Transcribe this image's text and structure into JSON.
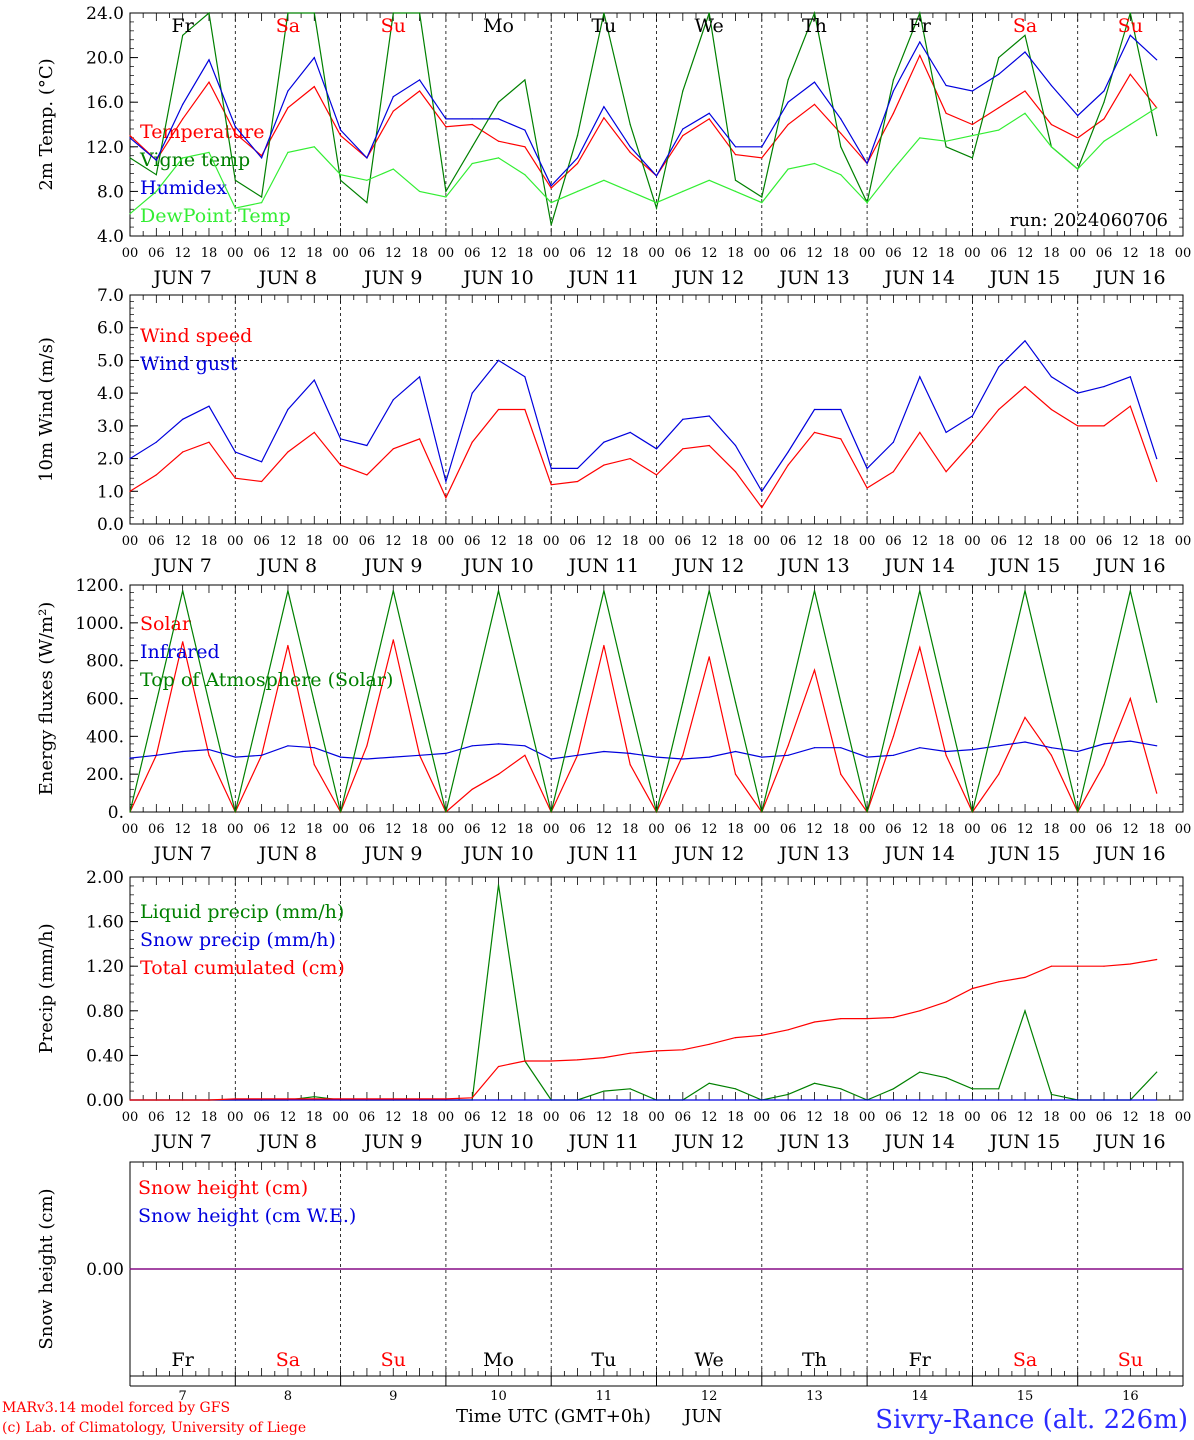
{
  "footer": {
    "model": "MARv3.14 model forced by GFS",
    "copyright": "(c) Lab. of Climatology, University of Liege",
    "xlabel": "Time UTC (GMT+0h)",
    "month": "JUN",
    "station": "Sivry-Rance (alt. 226m)"
  },
  "days": [
    {
      "abbr": "Fr",
      "num": "7",
      "weekend": false
    },
    {
      "abbr": "Sa",
      "num": "8",
      "weekend": true
    },
    {
      "abbr": "Su",
      "num": "9",
      "weekend": true
    },
    {
      "abbr": "Mo",
      "num": "10",
      "weekend": false
    },
    {
      "abbr": "Tu",
      "num": "11",
      "weekend": false
    },
    {
      "abbr": "We",
      "num": "12",
      "weekend": false
    },
    {
      "abbr": "Th",
      "num": "13",
      "weekend": false
    },
    {
      "abbr": "Fr",
      "num": "14",
      "weekend": false
    },
    {
      "abbr": "Sa",
      "num": "15",
      "weekend": true
    },
    {
      "abbr": "Su",
      "num": "16",
      "weekend": true
    }
  ],
  "hour_ticks": [
    "00",
    "06",
    "12",
    "18"
  ],
  "date_labels": [
    "JUN  7",
    "JUN  8",
    "JUN  9",
    "JUN 10",
    "JUN 11",
    "JUN 12",
    "JUN 13",
    "JUN 14",
    "JUN 15",
    "JUN 16"
  ],
  "colors": {
    "red": "#ff0000",
    "green": "#008000",
    "lightgreen": "#33ee33",
    "blue": "#0000dd",
    "purple": "#800080",
    "weekend": "#ff0000",
    "station": "#2b2bff"
  },
  "chart_data": [
    {
      "type": "line",
      "ylabel": "2m Temp. (°C)",
      "ylim": [
        4,
        24
      ],
      "yticks": [
        "4.0",
        "8.0",
        "12.0",
        "16.0",
        "20.0",
        "24.0"
      ],
      "ytick_values": [
        4,
        8,
        12,
        16,
        20,
        24
      ],
      "annotation": "run: 2024060706",
      "x_hours": [
        0,
        6,
        12,
        18,
        24,
        30,
        36,
        42,
        48,
        54,
        60,
        66,
        72,
        78,
        84,
        90,
        96,
        102,
        108,
        114,
        120,
        126,
        132,
        138,
        144,
        150,
        156,
        162,
        168,
        174,
        180,
        186,
        192,
        198,
        204,
        210,
        216,
        222,
        228,
        234
      ],
      "series": [
        {
          "name": "Temperature",
          "color": "red",
          "values": [
            13.0,
            10.8,
            14.5,
            17.8,
            13.2,
            11.2,
            15.5,
            17.4,
            13.0,
            11.0,
            15.2,
            17.0,
            13.8,
            14.0,
            12.5,
            12.0,
            8.3,
            10.5,
            14.6,
            11.5,
            9.4,
            13.0,
            14.5,
            11.3,
            11.0,
            14.0,
            15.8,
            13.2,
            10.5,
            15.0,
            20.2,
            15.0,
            14.0,
            15.5,
            17.0,
            14.0,
            12.8,
            14.5,
            18.5,
            15.5
          ]
        },
        {
          "name": "Vigne temp",
          "color": "green",
          "values": [
            11.0,
            9.5,
            22.0,
            24.0,
            9.0,
            7.5,
            24.0,
            24.0,
            9.0,
            7.0,
            24.0,
            24.0,
            8.0,
            12.0,
            16.0,
            18.0,
            5.0,
            13.0,
            24.0,
            14.0,
            6.5,
            17.0,
            24.0,
            9.0,
            7.5,
            18.0,
            24.0,
            12.0,
            7.0,
            18.0,
            24.0,
            12.0,
            11.0,
            20.0,
            22.0,
            12.0,
            10.0,
            16.0,
            24.0,
            13.0
          ]
        },
        {
          "name": "Humidex",
          "color": "blue",
          "values": [
            12.8,
            10.8,
            15.8,
            19.8,
            13.8,
            11.0,
            17.0,
            20.0,
            13.5,
            11.0,
            16.5,
            18.0,
            14.5,
            14.5,
            14.5,
            13.5,
            8.5,
            11.0,
            15.6,
            12.0,
            9.4,
            13.6,
            15.0,
            12.0,
            12.0,
            16.0,
            17.8,
            14.5,
            10.5,
            17.0,
            21.4,
            17.5,
            17.0,
            18.5,
            20.5,
            17.5,
            14.8,
            17.0,
            22.0,
            19.8
          ]
        },
        {
          "name": "DewPoint Temp",
          "color": "lightgreen",
          "values": [
            6.0,
            8.0,
            11.0,
            11.5,
            6.5,
            7.0,
            11.5,
            12.0,
            9.5,
            9.0,
            10.0,
            8.0,
            7.5,
            10.5,
            11.0,
            9.5,
            7.0,
            8.0,
            9.0,
            8.0,
            7.0,
            8.0,
            9.0,
            8.0,
            7.0,
            10.0,
            10.5,
            9.5,
            7.0,
            10.0,
            12.8,
            12.5,
            13.0,
            13.5,
            15.0,
            12.0,
            10.0,
            12.5,
            14.0,
            15.5
          ]
        }
      ]
    },
    {
      "type": "line",
      "ylabel": "10m Wind (m/s)",
      "ylim": [
        0,
        7
      ],
      "yticks": [
        "0.0",
        "1.0",
        "2.0",
        "3.0",
        "4.0",
        "5.0",
        "6.0",
        "7.0"
      ],
      "ytick_values": [
        0,
        1,
        2,
        3,
        4,
        5,
        6,
        7
      ],
      "reference_line": 5.0,
      "x_hours": [
        0,
        6,
        12,
        18,
        24,
        30,
        36,
        42,
        48,
        54,
        60,
        66,
        72,
        78,
        84,
        90,
        96,
        102,
        108,
        114,
        120,
        126,
        132,
        138,
        144,
        150,
        156,
        162,
        168,
        174,
        180,
        186,
        192,
        198,
        204,
        210,
        216,
        222,
        228,
        234
      ],
      "series": [
        {
          "name": "Wind speed",
          "color": "red",
          "values": [
            1.0,
            1.5,
            2.2,
            2.5,
            1.4,
            1.3,
            2.2,
            2.8,
            1.8,
            1.5,
            2.3,
            2.6,
            0.8,
            2.5,
            3.5,
            3.5,
            1.2,
            1.3,
            1.8,
            2.0,
            1.5,
            2.3,
            2.4,
            1.6,
            0.5,
            1.8,
            2.8,
            2.6,
            1.1,
            1.6,
            2.8,
            1.6,
            2.5,
            3.5,
            4.2,
            3.5,
            3.0,
            3.0,
            3.6,
            1.3
          ]
        },
        {
          "name": "Wind gust",
          "color": "blue",
          "values": [
            2.0,
            2.5,
            3.2,
            3.6,
            2.2,
            1.9,
            3.5,
            4.4,
            2.6,
            2.4,
            3.8,
            4.5,
            1.3,
            4.0,
            5.0,
            4.5,
            1.7,
            1.7,
            2.5,
            2.8,
            2.3,
            3.2,
            3.3,
            2.4,
            1.0,
            2.2,
            3.5,
            3.5,
            1.7,
            2.5,
            4.5,
            2.8,
            3.3,
            4.8,
            5.6,
            4.5,
            4.0,
            4.2,
            4.5,
            2.0
          ]
        }
      ]
    },
    {
      "type": "line",
      "ylabel": "Energy fluxes (W/m²)",
      "ylim": [
        0,
        1200
      ],
      "yticks": [
        "0.",
        "200.",
        "400.",
        "600.",
        "800.",
        "1000.",
        "1200."
      ],
      "ytick_values": [
        0,
        200,
        400,
        600,
        800,
        1000,
        1200
      ],
      "x_hours": [
        0,
        6,
        12,
        18,
        24,
        30,
        36,
        42,
        48,
        54,
        60,
        66,
        72,
        78,
        84,
        90,
        96,
        102,
        108,
        114,
        120,
        126,
        132,
        138,
        144,
        150,
        156,
        162,
        168,
        174,
        180,
        186,
        192,
        198,
        204,
        210,
        216,
        222,
        228,
        234
      ],
      "series": [
        {
          "name": "Solar",
          "color": "red",
          "values": [
            0,
            300,
            900,
            300,
            0,
            300,
            880,
            250,
            0,
            350,
            910,
            300,
            0,
            120,
            200,
            300,
            0,
            300,
            880,
            250,
            0,
            300,
            820,
            200,
            0,
            350,
            750,
            200,
            0,
            400,
            870,
            300,
            0,
            200,
            500,
            300,
            0,
            250,
            600,
            100
          ]
        },
        {
          "name": "Infrared",
          "color": "blue",
          "values": [
            285,
            300,
            320,
            330,
            290,
            300,
            350,
            340,
            290,
            280,
            290,
            300,
            310,
            350,
            360,
            350,
            280,
            300,
            320,
            310,
            290,
            280,
            290,
            320,
            290,
            300,
            340,
            340,
            290,
            300,
            340,
            320,
            330,
            350,
            370,
            340,
            320,
            360,
            375,
            350
          ]
        },
        {
          "name": "Top of Atmosphere (Solar)",
          "color": "green",
          "values": [
            0,
            580,
            1170,
            580,
            0,
            580,
            1170,
            580,
            0,
            580,
            1170,
            580,
            0,
            580,
            1170,
            580,
            0,
            580,
            1170,
            580,
            0,
            580,
            1170,
            580,
            0,
            580,
            1170,
            580,
            0,
            580,
            1170,
            580,
            0,
            580,
            1170,
            580,
            0,
            580,
            1170,
            580
          ]
        }
      ]
    },
    {
      "type": "line",
      "ylabel": "Precip (mm/h)",
      "ylim": [
        0,
        2
      ],
      "yticks": [
        "0.00",
        "0.40",
        "0.80",
        "1.20",
        "1.60",
        "2.00"
      ],
      "ytick_values": [
        0,
        0.4,
        0.8,
        1.2,
        1.6,
        2.0
      ],
      "x_hours": [
        0,
        6,
        12,
        18,
        24,
        30,
        36,
        42,
        48,
        54,
        60,
        66,
        72,
        78,
        84,
        90,
        96,
        102,
        108,
        114,
        120,
        126,
        132,
        138,
        144,
        150,
        156,
        162,
        168,
        174,
        180,
        186,
        192,
        198,
        204,
        210,
        216,
        222,
        228,
        234
      ],
      "series": [
        {
          "name": "Liquid precip (mm/h)",
          "color": "green",
          "values": [
            0,
            0,
            0,
            0,
            0,
            0,
            0,
            0.03,
            0,
            0,
            0,
            0,
            0,
            0,
            1.93,
            0.35,
            0,
            0,
            0.08,
            0.1,
            0,
            0,
            0.15,
            0.1,
            0,
            0.05,
            0.15,
            0.1,
            0,
            0.1,
            0.25,
            0.2,
            0.1,
            0.1,
            0.8,
            0.05,
            0,
            0,
            0,
            0.25
          ]
        },
        {
          "name": "Snow precip (mm/h)",
          "color": "blue",
          "values": [
            0,
            0,
            0,
            0,
            0,
            0,
            0,
            0,
            0,
            0,
            0,
            0,
            0,
            0,
            0,
            0,
            0,
            0,
            0,
            0,
            0,
            0,
            0,
            0,
            0,
            0,
            0,
            0,
            0,
            0,
            0,
            0,
            0,
            0,
            0,
            0,
            0,
            0,
            0,
            0
          ]
        },
        {
          "name": "Total cumulated (cm)",
          "color": "red",
          "values": [
            0,
            0,
            0,
            0,
            0.01,
            0.01,
            0.01,
            0.01,
            0.01,
            0.01,
            0.01,
            0.01,
            0.01,
            0.02,
            0.3,
            0.35,
            0.35,
            0.36,
            0.38,
            0.42,
            0.44,
            0.45,
            0.5,
            0.56,
            0.58,
            0.63,
            0.7,
            0.73,
            0.73,
            0.74,
            0.8,
            0.88,
            1.0,
            1.06,
            1.1,
            1.2,
            1.2,
            1.2,
            1.22,
            1.26
          ]
        }
      ]
    },
    {
      "type": "line",
      "ylabel": "Snow height (cm)",
      "ylim": [
        -1,
        1
      ],
      "yticks": [
        "0.00"
      ],
      "ytick_values": [
        0
      ],
      "x_hours": [
        0,
        240
      ],
      "series": [
        {
          "name": "Snow height (cm)",
          "color": "red",
          "values": [
            0,
            0
          ]
        },
        {
          "name": "Snow height (cm W.E.)",
          "color": "blue",
          "values": [
            0,
            0
          ]
        }
      ]
    }
  ]
}
